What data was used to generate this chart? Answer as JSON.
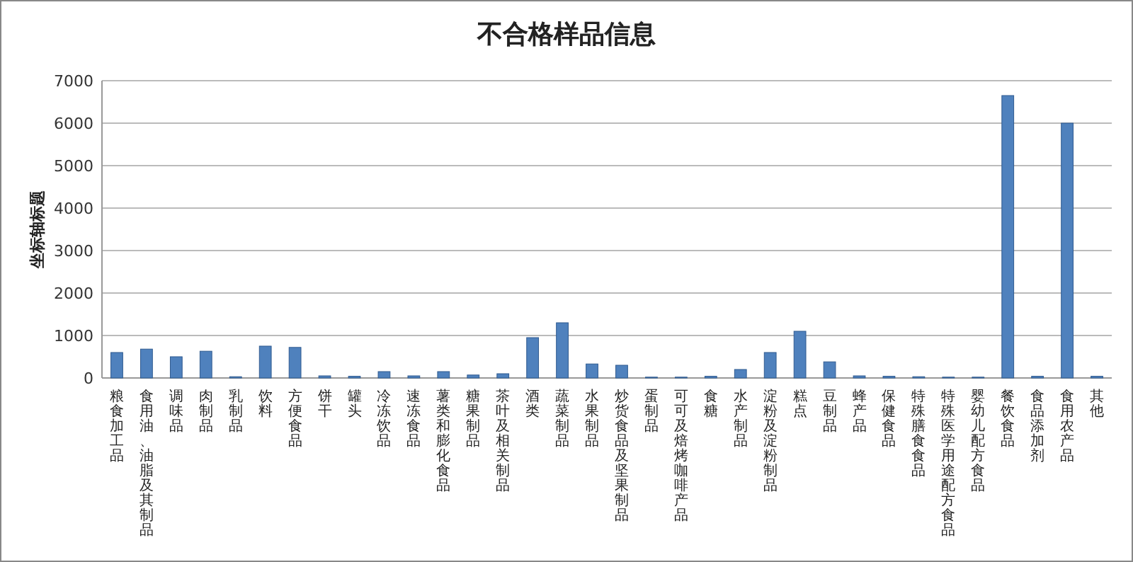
{
  "chart_data": {
    "type": "bar",
    "title": "不合格样品信息",
    "ylabel": "坐标轴标题",
    "categories": [
      "粮食加工品",
      "食用油、油脂及其制品",
      "调味品",
      "肉制品",
      "乳制品",
      "饮料",
      "方便食品",
      "饼干",
      "罐头",
      "冷冻饮品",
      "速冻食品",
      "薯类和膨化食品",
      "糖果制品",
      "茶叶及相关制品",
      "酒类",
      "蔬菜制品",
      "水果制品",
      "炒货食品及坚果制品",
      "蛋制品",
      "可可及焙烤咖啡产品",
      "食糖",
      "水产制品",
      "淀粉及淀粉制品",
      "糕点",
      "豆制品",
      "蜂产品",
      "保健食品",
      "特殊膳食食品",
      "特殊医学用途配方食品",
      "婴幼儿配方食品",
      "餐饮食品",
      "食品添加剂",
      "食用农产品",
      "其他"
    ],
    "values": [
      600,
      680,
      500,
      630,
      30,
      750,
      720,
      50,
      40,
      150,
      50,
      150,
      70,
      100,
      950,
      1300,
      330,
      300,
      20,
      20,
      40,
      200,
      600,
      1100,
      380,
      50,
      40,
      30,
      20,
      20,
      6650,
      40,
      6000,
      40
    ],
    "color": "#4f81bd",
    "ylim": [
      0,
      7000
    ],
    "yticks": [
      0,
      1000,
      2000,
      3000,
      4000,
      5000,
      6000,
      7000
    ],
    "grid": "y"
  }
}
